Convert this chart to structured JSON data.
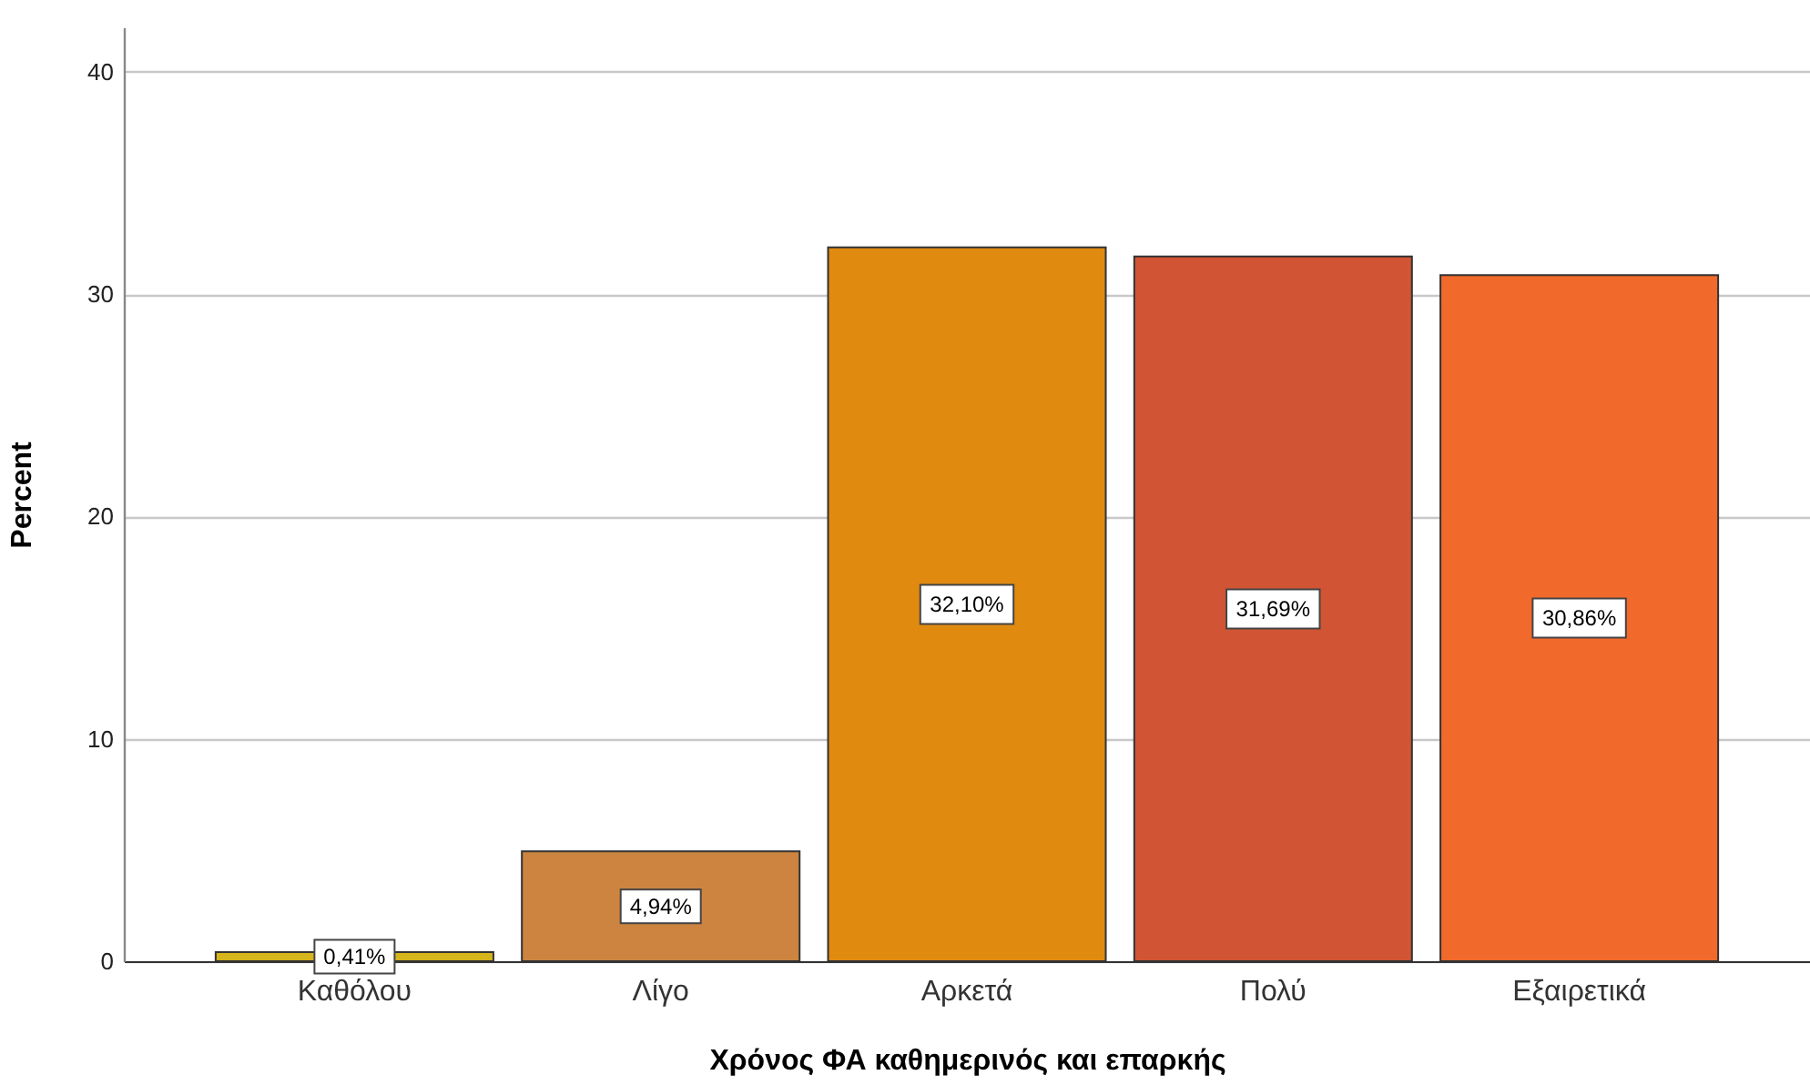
{
  "chart_data": {
    "type": "bar",
    "xlabel": "Χρόνος ΦΑ καθημερινός και επαρκής",
    "ylabel": "Percent",
    "categories": [
      "Καθόλου",
      "Λίγο",
      "Αρκετά",
      "Πολύ",
      "Εξαιρετικά"
    ],
    "values": [
      0.41,
      4.94,
      32.1,
      31.69,
      30.86
    ],
    "colors": [
      "#d6b41c",
      "#cc8440",
      "#e08a10",
      "#d15434",
      "#f2692c"
    ],
    "value_labels": [
      "0,41%",
      "4,94%",
      "32,10%",
      "31,69%",
      "30,86%"
    ],
    "ylim": [
      0,
      42
    ],
    "yticks": [
      0,
      10,
      20,
      30,
      40
    ],
    "grid": "y"
  }
}
